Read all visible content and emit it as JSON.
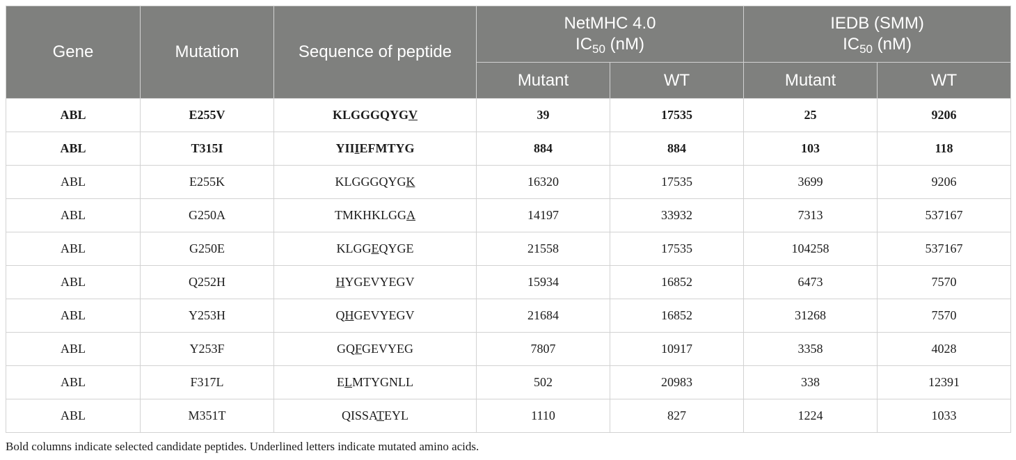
{
  "header": {
    "gene": "Gene",
    "mutation": "Mutation",
    "sequence": "Sequence of peptide",
    "netmhc": {
      "line1": "NetMHC 4.0",
      "ic_prefix": "IC",
      "ic_sub": "50",
      "ic_suffix": " (nM)"
    },
    "iedb": {
      "line1": "IEDB (SMM)",
      "ic_prefix": "IC",
      "ic_sub": "50",
      "ic_suffix": " (nM)"
    },
    "mutant": "Mutant",
    "wt": "WT"
  },
  "rows": [
    {
      "bold": true,
      "gene": "ABL",
      "mutation": "E255V",
      "seq_pre": "KLGGGQYG",
      "seq_mut": "V",
      "seq_post": "",
      "net_mutant": "39",
      "net_wt": "17535",
      "iedb_mutant": "25",
      "iedb_wt": "9206"
    },
    {
      "bold": true,
      "gene": "ABL",
      "mutation": "T315I",
      "seq_pre": "YII",
      "seq_mut": "I",
      "seq_post": "EFMTYG",
      "net_mutant": "884",
      "net_wt": "884",
      "iedb_mutant": "103",
      "iedb_wt": "118"
    },
    {
      "bold": false,
      "gene": "ABL",
      "mutation": "E255K",
      "seq_pre": "KLGGGQYG",
      "seq_mut": "K",
      "seq_post": "",
      "net_mutant": "16320",
      "net_wt": "17535",
      "iedb_mutant": "3699",
      "iedb_wt": "9206"
    },
    {
      "bold": false,
      "gene": "ABL",
      "mutation": "G250A",
      "seq_pre": "TMKHKLGG",
      "seq_mut": "A",
      "seq_post": "",
      "net_mutant": "14197",
      "net_wt": "33932",
      "iedb_mutant": "7313",
      "iedb_wt": "537167"
    },
    {
      "bold": false,
      "gene": "ABL",
      "mutation": "G250E",
      "seq_pre": "KLGG",
      "seq_mut": "E",
      "seq_post": "QYGE",
      "net_mutant": "21558",
      "net_wt": "17535",
      "iedb_mutant": "104258",
      "iedb_wt": "537167"
    },
    {
      "bold": false,
      "gene": "ABL",
      "mutation": "Q252H",
      "seq_pre": "",
      "seq_mut": "H",
      "seq_post": "YGEVYEGV",
      "net_mutant": "15934",
      "net_wt": "16852",
      "iedb_mutant": "6473",
      "iedb_wt": "7570"
    },
    {
      "bold": false,
      "gene": "ABL",
      "mutation": "Y253H",
      "seq_pre": "Q",
      "seq_mut": "H",
      "seq_post": "GEVYEGV",
      "net_mutant": "21684",
      "net_wt": "16852",
      "iedb_mutant": "31268",
      "iedb_wt": "7570"
    },
    {
      "bold": false,
      "gene": "ABL",
      "mutation": "Y253F",
      "seq_pre": "GQ",
      "seq_mut": "F",
      "seq_post": "GEVYEG",
      "net_mutant": "7807",
      "net_wt": "10917",
      "iedb_mutant": "3358",
      "iedb_wt": "4028"
    },
    {
      "bold": false,
      "gene": "ABL",
      "mutation": "F317L",
      "seq_pre": "E",
      "seq_mut": "L",
      "seq_post": "MTYGNLL",
      "net_mutant": "502",
      "net_wt": "20983",
      "iedb_mutant": "338",
      "iedb_wt": "12391"
    },
    {
      "bold": false,
      "gene": "ABL",
      "mutation": "M351T",
      "seq_pre": "QISSA",
      "seq_mut": "T",
      "seq_post": "EYL",
      "net_mutant": "1110",
      "net_wt": "827",
      "iedb_mutant": "1224",
      "iedb_wt": "1033"
    }
  ],
  "footnote": "Bold columns indicate selected candidate peptides. Underlined letters indicate mutated amino acids.",
  "colors": {
    "header_bg": "#7f807e",
    "header_text": "#ffffff",
    "border": "#d2d2d2"
  }
}
